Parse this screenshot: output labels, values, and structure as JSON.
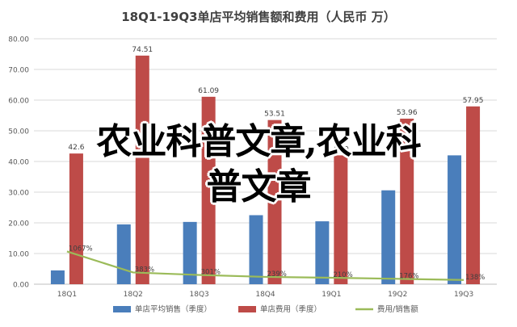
{
  "chart_data": {
    "type": "bar",
    "title": "18Q1-19Q3单店平均销售额和费用（人民币 万）",
    "categories": [
      "18Q1",
      "18Q2",
      "18Q3",
      "18Q4",
      "19Q1",
      "19Q2",
      "19Q3"
    ],
    "ylim": [
      0,
      80
    ],
    "yticks": [
      "0.00",
      "10.00",
      "20.00",
      "30.00",
      "40.00",
      "50.00",
      "60.00",
      "70.00",
      "80.00"
    ],
    "grid": true,
    "legend_position": "bottom",
    "series": [
      {
        "name": "单店平均销售（季度）",
        "type": "bar",
        "color": "#4a7ebb",
        "values": [
          4.5,
          19.5,
          20.3,
          22.5,
          20.5,
          30.6,
          42.0
        ]
      },
      {
        "name": "单店费用（季度）",
        "type": "bar",
        "color": "#be4b48",
        "values": [
          42.6,
          74.51,
          61.09,
          53.51,
          42.0,
          53.96,
          57.95
        ],
        "labels": [
          "42.6",
          "74.51",
          "61.09",
          "53.51",
          "42.0",
          "53.96",
          "57.95"
        ]
      },
      {
        "name": "费用/销售额",
        "type": "line",
        "color": "#9bbb59",
        "values": [
          10.67,
          3.83,
          3.01,
          2.39,
          2.1,
          1.76,
          1.38
        ],
        "labels": [
          "1067%",
          "383%",
          "301%",
          "239%",
          "210%",
          "176%",
          "138%"
        ]
      }
    ]
  },
  "overlay": {
    "line1": "农业科普文章,农业科",
    "line2": "普文章"
  }
}
